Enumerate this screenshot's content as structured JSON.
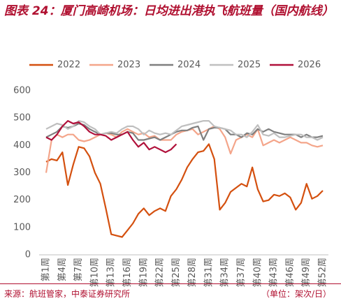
{
  "chart_data": {
    "type": "line",
    "title": "图表 24：厦门高崎机场：日均进出港执飞航班量（国内航线）",
    "source": "来源：航班管家，中泰证券研究所",
    "unit": "（单位：架次/日）",
    "categories": [
      "第1周",
      null,
      null,
      "第4周",
      null,
      null,
      "第7周",
      null,
      null,
      "第10周",
      null,
      null,
      "第13周",
      null,
      null,
      "第16周",
      null,
      null,
      "第19周",
      null,
      null,
      "第22周",
      null,
      null,
      "第25周",
      null,
      null,
      "第28周",
      null,
      null,
      "第31周",
      null,
      null,
      "第34周",
      null,
      null,
      "第37周",
      null,
      null,
      "第40周",
      null,
      null,
      "第43周",
      null,
      null,
      "第46周",
      null,
      null,
      "第49周",
      null,
      null,
      "第52周"
    ],
    "ylim": [
      0,
      600
    ],
    "yticks": [
      0,
      100,
      200,
      300,
      400,
      500,
      600
    ],
    "series": [
      {
        "name": "2022",
        "color": "#d4500f",
        "values": [
          340,
          350,
          345,
          375,
          255,
          330,
          395,
          390,
          360,
          300,
          260,
          170,
          75,
          70,
          65,
          90,
          115,
          150,
          170,
          145,
          160,
          170,
          160,
          215,
          240,
          275,
          320,
          350,
          375,
          380,
          405,
          350,
          165,
          190,
          230,
          245,
          260,
          250,
          320,
          240,
          195,
          200,
          220,
          215,
          225,
          210,
          165,
          190,
          260,
          205,
          215,
          235
        ]
      },
      {
        "name": "2023",
        "color": "#f4a58a",
        "values": [
          300,
          420,
          440,
          430,
          440,
          440,
          420,
          415,
          420,
          430,
          440,
          445,
          440,
          430,
          450,
          460,
          450,
          440,
          445,
          430,
          435,
          420,
          420,
          420,
          440,
          450,
          455,
          460,
          440,
          450,
          460,
          470,
          460,
          430,
          370,
          420,
          430,
          440,
          430,
          460,
          400,
          410,
          420,
          410,
          420,
          430,
          420,
          410,
          410,
          400,
          395,
          400
        ]
      },
      {
        "name": "2024",
        "color": "#7f7f7f",
        "values": [
          430,
          440,
          450,
          470,
          465,
          470,
          480,
          475,
          460,
          450,
          440,
          445,
          445,
          440,
          440,
          450,
          445,
          420,
          420,
          425,
          430,
          420,
          430,
          440,
          450,
          455,
          455,
          465,
          470,
          420,
          460,
          465,
          465,
          460,
          440,
          440,
          430,
          445,
          440,
          460,
          450,
          460,
          450,
          445,
          440,
          440,
          440,
          430,
          440,
          430,
          430,
          435
        ]
      },
      {
        "name": "2025",
        "color": "#bfbfbf",
        "values": [
          460,
          470,
          480,
          475,
          460,
          470,
          490,
          485,
          470,
          460,
          440,
          445,
          450,
          445,
          460,
          470,
          470,
          460,
          440,
          455,
          445,
          440,
          445,
          440,
          455,
          470,
          475,
          480,
          485,
          490,
          490,
          470,
          465,
          460,
          455,
          440,
          440,
          430,
          450,
          475,
          440,
          435,
          445,
          430,
          430,
          435,
          440,
          440,
          430,
          430,
          420,
          430
        ]
      },
      {
        "name": "2026",
        "color": "#b0103a",
        "values": [
          430,
          420,
          440,
          470,
          490,
          480,
          485,
          470,
          450,
          440,
          440,
          435,
          420,
          430,
          440,
          450,
          420,
          395,
          410,
          385,
          395,
          385,
          375,
          385,
          405,
          null,
          null,
          null,
          null,
          null,
          null,
          null,
          null,
          null,
          null,
          null,
          null,
          null,
          null,
          null,
          null,
          null,
          null,
          null,
          null,
          null,
          null,
          null,
          null,
          null,
          null,
          null
        ]
      }
    ]
  }
}
